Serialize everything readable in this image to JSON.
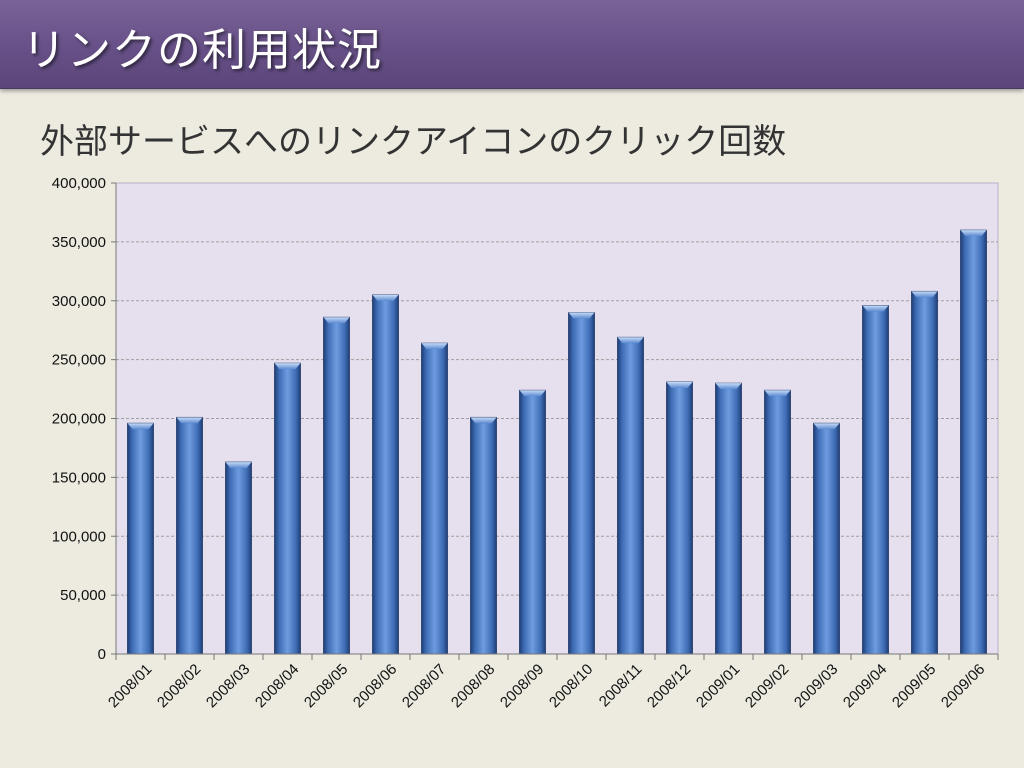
{
  "slide": {
    "title": "リンクの利用状況",
    "colors": {
      "header": "#665087",
      "background": "#edeae0",
      "plot_area": "#e6e0ee",
      "bar": "#4a78c0"
    }
  },
  "chart_data": {
    "type": "bar",
    "title": "外部サービスへのリンクアイコンのクリック回数",
    "xlabel": "",
    "ylabel": "",
    "categories": [
      "2008/01",
      "2008/02",
      "2008/03",
      "2008/04",
      "2008/05",
      "2008/06",
      "2008/07",
      "2008/08",
      "2008/09",
      "2008/10",
      "2008/11",
      "2008/12",
      "2009/01",
      "2009/02",
      "2009/03",
      "2009/04",
      "2009/05",
      "2009/06"
    ],
    "values": [
      196000,
      201000,
      163000,
      247000,
      286000,
      305000,
      264000,
      201000,
      224000,
      290000,
      269000,
      231000,
      230000,
      224000,
      196000,
      296000,
      308000,
      360000
    ],
    "ylim": [
      0,
      400000
    ],
    "yticks": [
      0,
      50000,
      100000,
      150000,
      200000,
      250000,
      300000,
      350000,
      400000
    ],
    "ytick_labels": [
      "0",
      "50,000",
      "100,000",
      "150,000",
      "200,000",
      "250,000",
      "300,000",
      "350,000",
      "400,000"
    ],
    "grid": true,
    "legend": "none"
  }
}
